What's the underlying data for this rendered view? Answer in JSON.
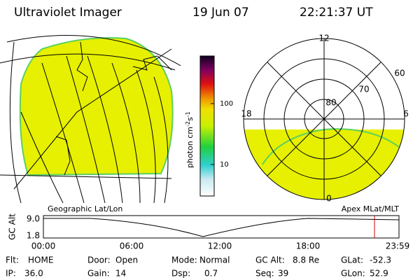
{
  "header": {
    "title": "Ultraviolet Imager",
    "date": "19 Jun 07",
    "time": "22:21:37 UT"
  },
  "colorbar": {
    "label": {
      "base": "photon cm",
      "exp1": "-2",
      "unit": "s",
      "exp2": "-1"
    },
    "ticks": [
      "100",
      "10"
    ]
  },
  "left_map": {
    "caption": "Geographic Lat/Lon"
  },
  "right_map": {
    "caption": "Apex MLat/MLT",
    "mlt_labels": [
      "12",
      "18",
      "6",
      "0"
    ],
    "lat_labels": [
      "60",
      "70",
      "80"
    ]
  },
  "altitude_panel": {
    "axis_label": "GC Alt",
    "yticks": [
      "9.0",
      "1.8"
    ],
    "xticks": [
      "00:00",
      "06:00",
      "12:00",
      "18:00",
      "23:59"
    ]
  },
  "status": {
    "rows": [
      [
        {
          "label": "Flt:",
          "value": "HOME"
        },
        {
          "label": "Door:",
          "value": "Open"
        },
        {
          "label": "Mode:",
          "value": "Normal"
        },
        {
          "label": "GC Alt:",
          "value": "8.8 Re"
        },
        {
          "label": "GLat:",
          "value": "-52.3"
        }
      ],
      [
        {
          "label": "IP:",
          "value": "36.0"
        },
        {
          "label": "Gain:",
          "value": "14"
        },
        {
          "label": "Dsp:",
          "value": "0.7"
        },
        {
          "label": "Seq:",
          "value": "39"
        },
        {
          "label": "GLon:",
          "value": "52.9"
        }
      ]
    ]
  }
}
